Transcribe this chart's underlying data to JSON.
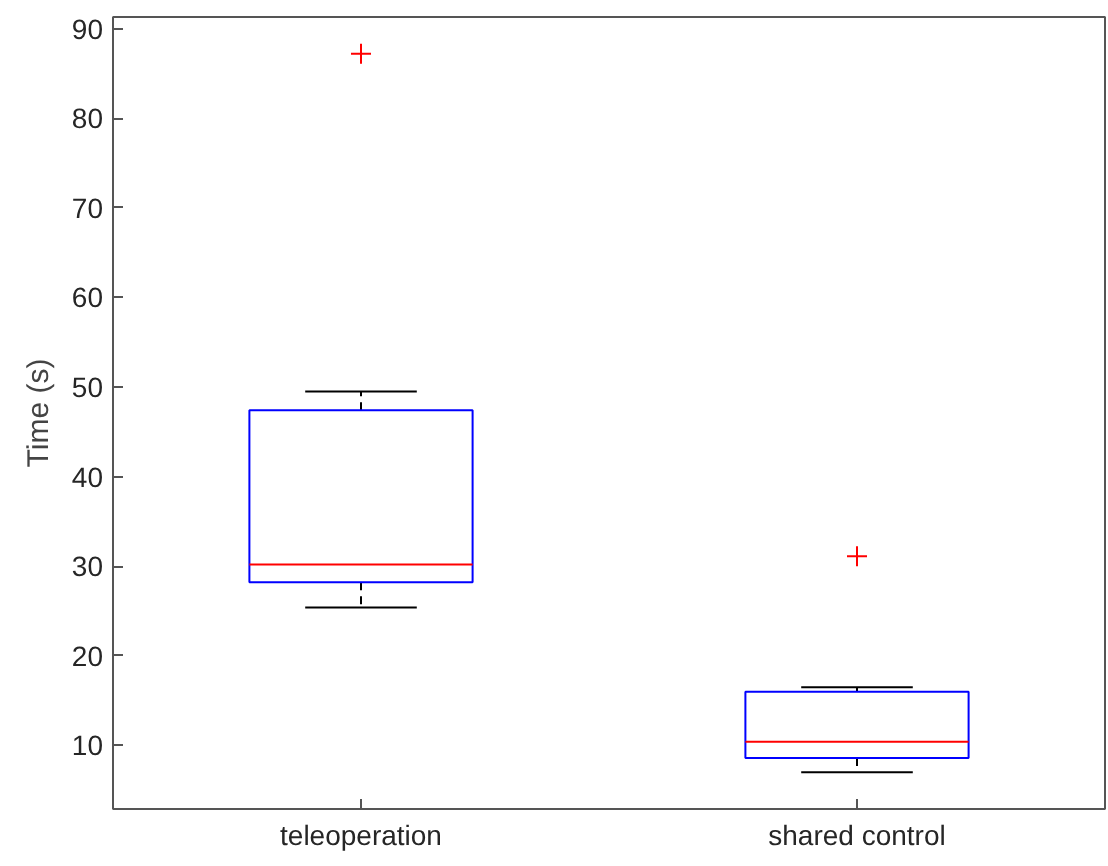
{
  "chart_data": {
    "type": "box",
    "ylabel": "Time (s)",
    "categories": [
      "teleoperation",
      "shared control"
    ],
    "ylim": [
      2.9,
      91.3
    ],
    "yticks": [
      10,
      20,
      30,
      40,
      50,
      60,
      70,
      80,
      90
    ],
    "grid": false,
    "series": [
      {
        "color": "#0000ff",
        "boxes": [
          {
            "low": 25.4,
            "q1": 28.2,
            "median": 30.2,
            "q3": 47.4,
            "high": 49.5,
            "outliers": [
              87.2
            ]
          },
          {
            "low": 7.0,
            "q1": 8.6,
            "median": 10.4,
            "q3": 16.0,
            "high": 16.5,
            "outliers": [
              31.1
            ]
          }
        ]
      }
    ]
  }
}
